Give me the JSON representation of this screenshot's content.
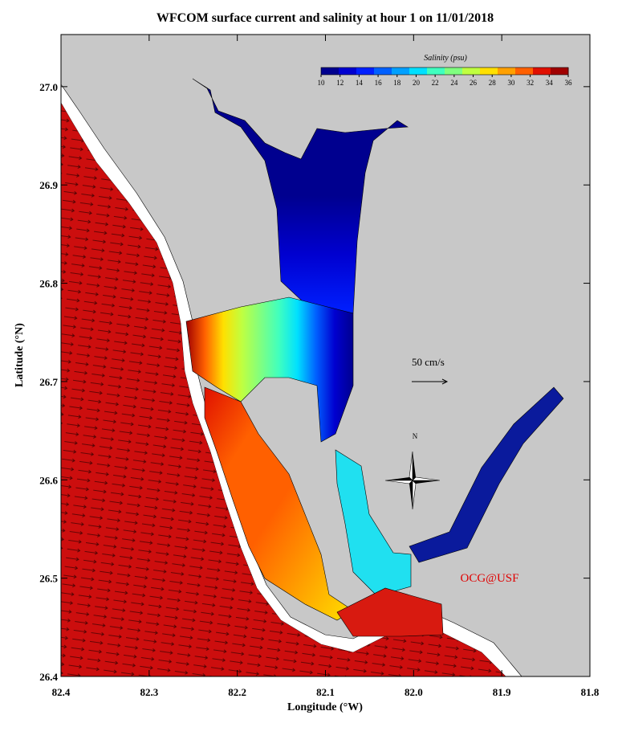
{
  "chart_data": {
    "type": "map",
    "title": "WFCOM surface current and salinity at hour 1 on 11/01/2018",
    "xlabel": "Longitude (°W)",
    "ylabel": "Latitude (°N)",
    "xlim": [
      82.4,
      81.8
    ],
    "ylim": [
      26.4,
      27.053
    ],
    "xticks": [
      82.4,
      82.3,
      82.2,
      82.1,
      {
        "value": 82,
        "label": "82.0"
      },
      81.9,
      81.8
    ],
    "yticks": [
      26.4,
      26.5,
      26.6,
      26.7,
      26.8,
      26.9,
      {
        "value": 27,
        "label": "27.0"
      }
    ],
    "colorbar": {
      "title": "Salinity (psu)",
      "lim": [
        10,
        36
      ],
      "ticks": [
        10,
        12,
        14,
        16,
        18,
        20,
        22,
        24,
        26,
        28,
        30,
        32,
        34,
        36
      ],
      "colors": [
        "#00008f",
        "#0000d0",
        "#0020ff",
        "#0060ff",
        "#00a0ff",
        "#00e0ff",
        "#40ffbf",
        "#80ff80",
        "#c0ff40",
        "#ffe000",
        "#ffa000",
        "#ff6000",
        "#e01000",
        "#a00000"
      ]
    },
    "scale_label": "50 cm/s",
    "north_label": "N",
    "credit": "OCG@USF"
  }
}
